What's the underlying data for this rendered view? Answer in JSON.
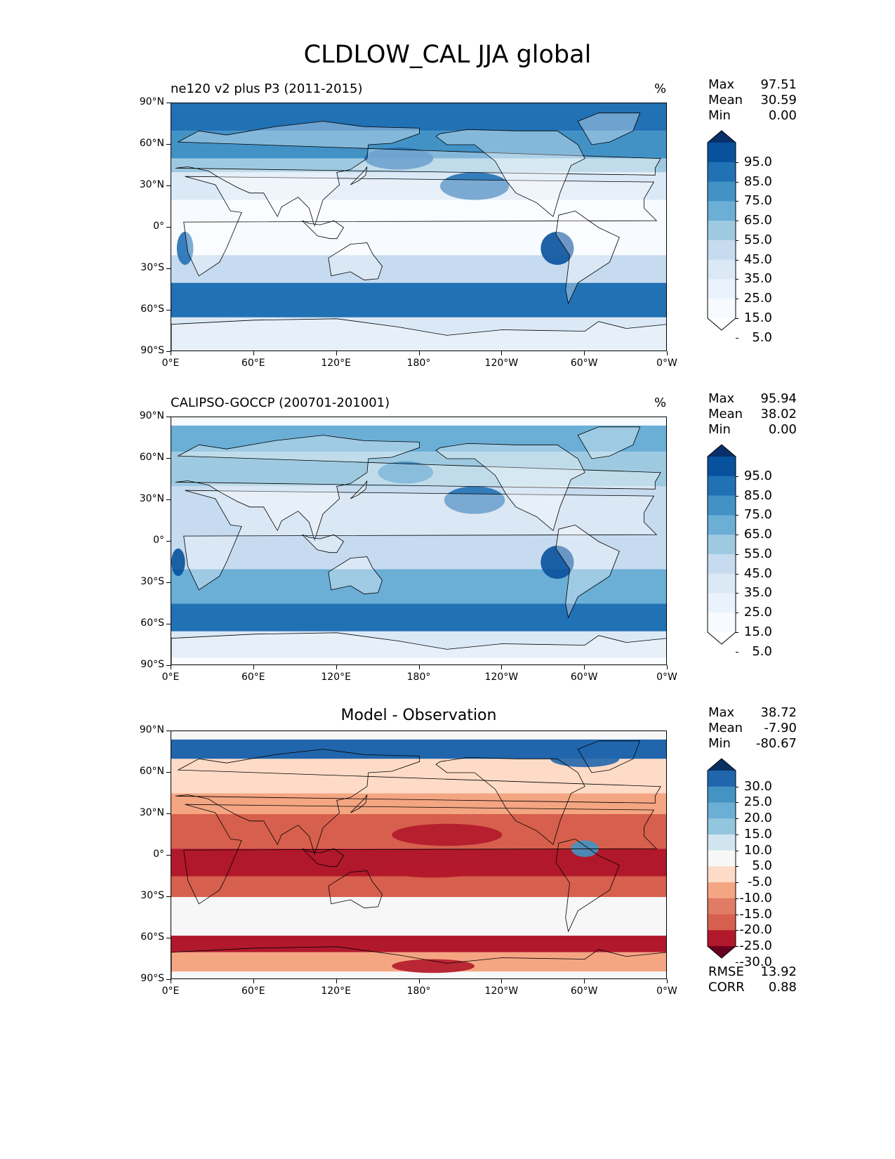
{
  "figure": {
    "title": "CLDLOW_CAL JJA global"
  },
  "axes": {
    "lat_ticks": [
      "90°N",
      "60°N",
      "30°N",
      "0°",
      "30°S",
      "60°S",
      "90°S"
    ],
    "lon_ticks": [
      "0°E",
      "60°E",
      "120°E",
      "180°",
      "120°W",
      "60°W",
      "0°W"
    ]
  },
  "panels": [
    {
      "id": "model",
      "title_left": "ne120 v2 plus P3 (2011-2015)",
      "title_center": "",
      "units": "%",
      "stats": [
        {
          "label": "Max",
          "value": "97.51"
        },
        {
          "label": "Mean",
          "value": "30.59"
        },
        {
          "label": "Min",
          "value": "0.00"
        }
      ],
      "colorbar": {
        "labels": [
          "95.0",
          "85.0",
          "75.0",
          "65.0",
          "55.0",
          "45.0",
          "35.0",
          "25.0",
          "15.0",
          "5.0"
        ],
        "colors": [
          "#08306b",
          "#08519c",
          "#2171b5",
          "#4292c6",
          "#6baed6",
          "#9ecae1",
          "#c6dbef",
          "#dbe9f6",
          "#eaf3fb",
          "#f7fbff",
          "#ffffff"
        ]
      },
      "field_colors": [
        "#f7fbff",
        "#dbe9f6",
        "#c6dbef",
        "#9ecae1",
        "#6baed6",
        "#4292c6",
        "#2171b5",
        "#08519c"
      ]
    },
    {
      "id": "obs",
      "title_left": "CALIPSO-GOCCP (200701-201001)",
      "title_center": "",
      "units": "%",
      "stats": [
        {
          "label": "Max",
          "value": "95.94"
        },
        {
          "label": "Mean",
          "value": "38.02"
        },
        {
          "label": "Min",
          "value": "0.00"
        }
      ],
      "colorbar": {
        "labels": [
          "95.0",
          "85.0",
          "75.0",
          "65.0",
          "55.0",
          "45.0",
          "35.0",
          "25.0",
          "15.0",
          "5.0"
        ],
        "colors": [
          "#08306b",
          "#08519c",
          "#2171b5",
          "#4292c6",
          "#6baed6",
          "#9ecae1",
          "#c6dbef",
          "#dbe9f6",
          "#eaf3fb",
          "#f7fbff",
          "#ffffff"
        ]
      },
      "field_colors": [
        "#f7fbff",
        "#dbe9f6",
        "#c6dbef",
        "#9ecae1",
        "#6baed6",
        "#4292c6",
        "#2171b5",
        "#08519c"
      ]
    },
    {
      "id": "diff",
      "title_left": "",
      "title_center": "Model - Observation",
      "units": "",
      "stats": [
        {
          "label": "Max",
          "value": "38.72"
        },
        {
          "label": "Mean",
          "value": "-7.90"
        },
        {
          "label": "Min",
          "value": "-80.67"
        }
      ],
      "colorbar": {
        "labels": [
          "30.0",
          "25.0",
          "20.0",
          "15.0",
          "10.0",
          "5.0",
          "-5.0",
          "-10.0",
          "-15.0",
          "-20.0",
          "-25.0",
          "-30.0"
        ],
        "colors": [
          "#053061",
          "#2166ac",
          "#4393c3",
          "#6baed6",
          "#92c5de",
          "#d1e5f0",
          "#f7f7f7",
          "#fddbc7",
          "#f4a582",
          "#e07b65",
          "#d6604d",
          "#b2182b",
          "#67001f"
        ]
      },
      "field_colors": [
        "#f7f7f7",
        "#fddbc7",
        "#f4a582",
        "#d6604d",
        "#b2182b",
        "#92c5de",
        "#4393c3",
        "#2166ac"
      ]
    }
  ],
  "metrics": [
    {
      "label": "RMSE",
      "value": "13.92"
    },
    {
      "label": "CORR",
      "value": "0.88"
    }
  ]
}
